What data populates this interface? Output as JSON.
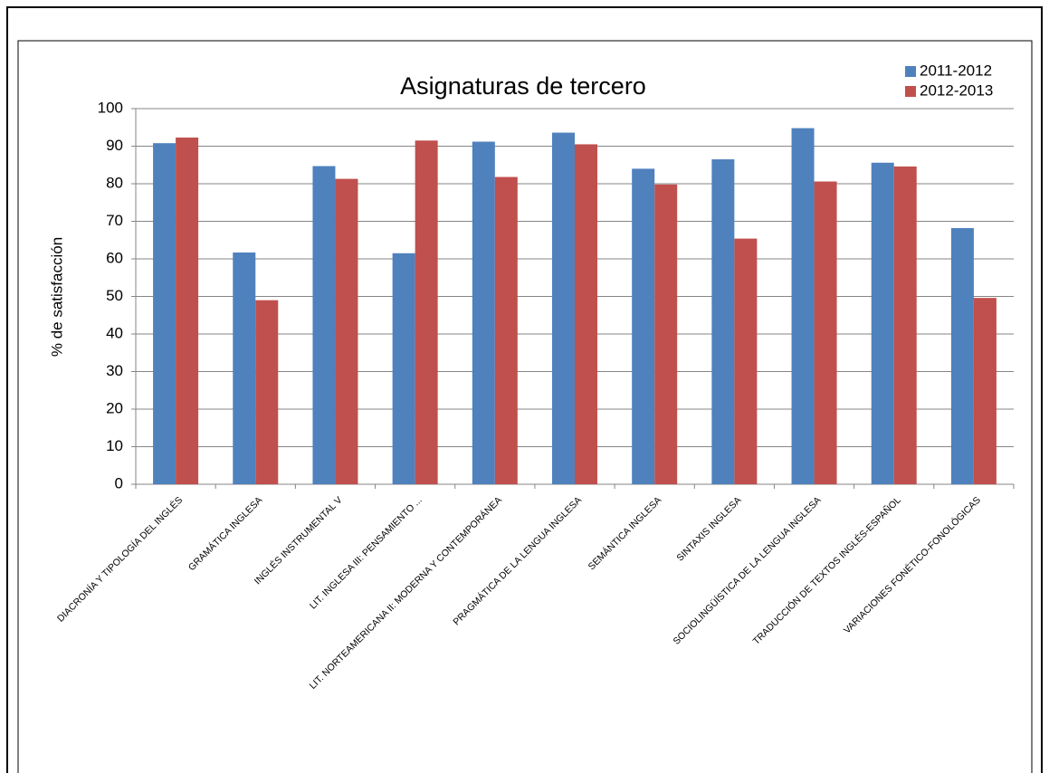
{
  "chart_data": {
    "type": "bar",
    "title": "Asignaturas de tercero",
    "y_label": "% de satisfacción",
    "categories": [
      "DIACRONÍA Y TIPOLOGÍA DEL INGLÉS",
      "GRAMÁTICA INGLESA",
      "INGLÉS INSTRUMENTAL V",
      "LIT. INGLESA III: PENSAMIENTO ...",
      "LIT. NORTEAMERICANA II: MODERNA Y CONTEMPORÁNEA",
      "PRAGMÁTICA DE LA LENGUA INGLESA",
      "SEMÁNTICA INGLESA",
      "SINTAXIS INGLESA",
      "SOCIOLINGÜÍSTICA DE LA LENGUA INGLESA",
      "TRADUCCIÓN DE TEXTOS INGLÉS-ESPAÑOL",
      "VARIACIONES FONÉTICO-FONOLÓGICAS"
    ],
    "series": [
      {
        "name": "2011-2012",
        "color": "#4f81bd",
        "values": [
          90.8,
          61.7,
          84.7,
          61.5,
          91.2,
          93.6,
          84,
          86.5,
          94.8,
          85.6,
          68.2
        ]
      },
      {
        "name": "2012-2013",
        "color": "#c0504d",
        "values": [
          92.3,
          49,
          81.3,
          91.5,
          81.8,
          90.5,
          79.8,
          65.4,
          80.6,
          84.6,
          49.6
        ]
      }
    ],
    "ylim": [
      0,
      100
    ],
    "yticks": [
      0,
      10,
      20,
      30,
      40,
      50,
      60,
      70,
      80,
      90,
      100
    ],
    "grid": true,
    "legend": "top-right"
  }
}
